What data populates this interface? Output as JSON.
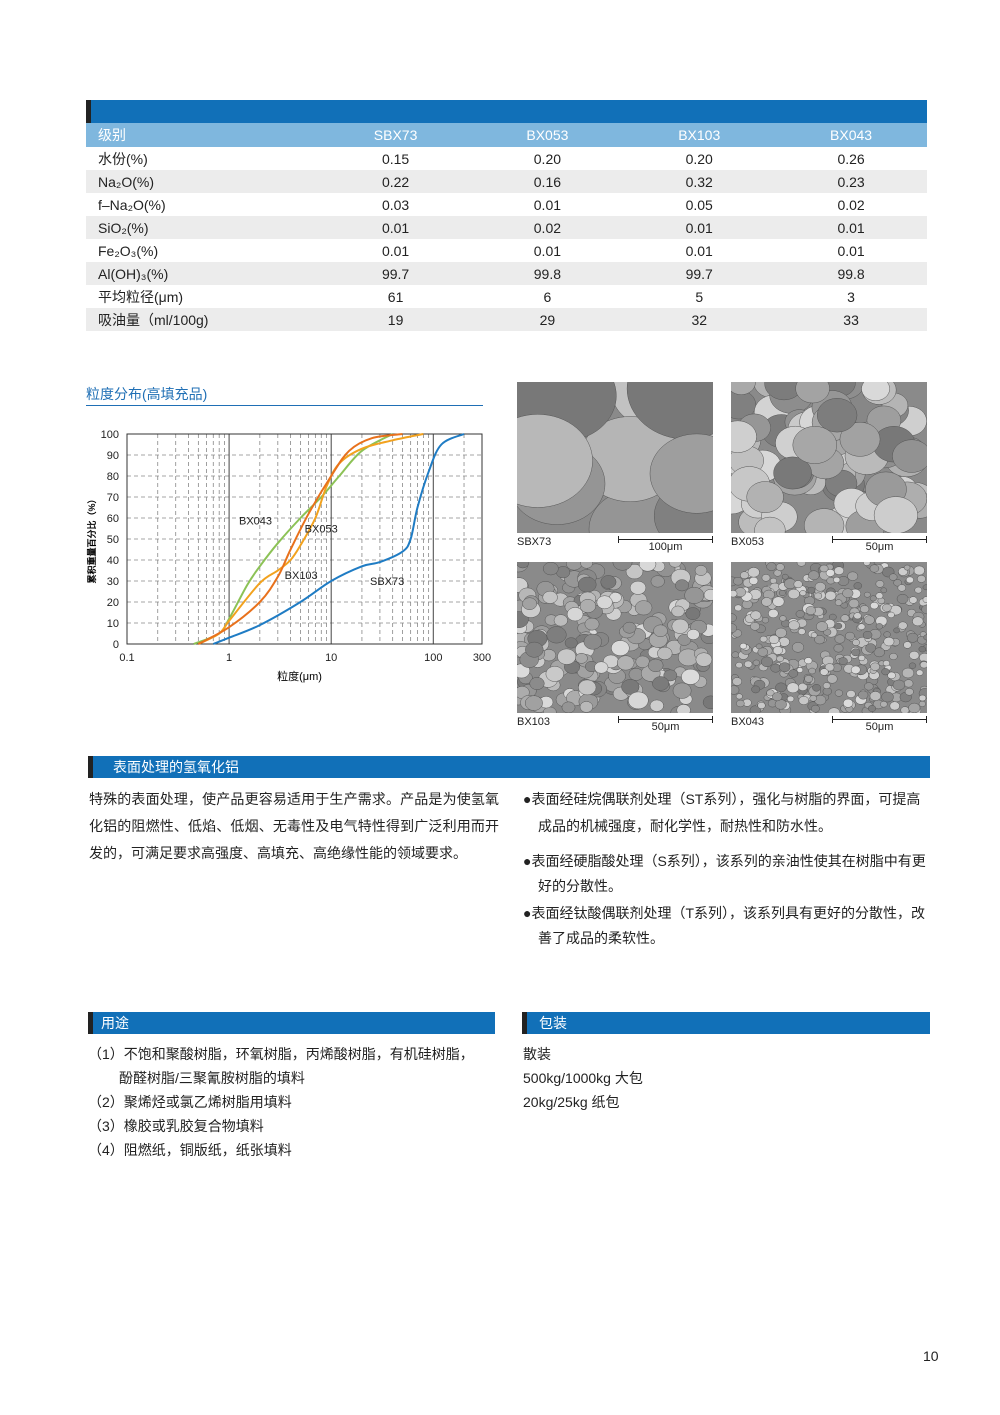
{
  "table": {
    "headers": [
      "级别",
      "SBX73",
      "BX053",
      "BX103",
      "BX043"
    ],
    "rows": [
      {
        "label": "水份(%)",
        "values": [
          "0.15",
          "0.20",
          "0.20",
          "0.26"
        ]
      },
      {
        "label": "Na₂O(%)",
        "values": [
          "0.22",
          "0.16",
          "0.32",
          "0.23"
        ]
      },
      {
        "label": "f–Na₂O(%)",
        "values": [
          "0.03",
          "0.01",
          "0.05",
          "0.02"
        ]
      },
      {
        "label": "SiO₂(%)",
        "values": [
          "0.01",
          "0.02",
          "0.01",
          "0.01"
        ]
      },
      {
        "label": "Fe₂O₃(%)",
        "values": [
          "0.01",
          "0.01",
          "0.01",
          "0.01"
        ]
      },
      {
        "label": "Al(OH)₃(%)",
        "values": [
          "99.7",
          "99.8",
          "99.7",
          "99.8"
        ]
      },
      {
        "label": "平均粒径(μm)",
        "values": [
          "61",
          "6",
          "5",
          "3"
        ]
      },
      {
        "label": "吸油量（ml/100g)",
        "values": [
          "19",
          "29",
          "32",
          "33"
        ]
      }
    ]
  },
  "chart_data": {
    "type": "line",
    "title": "粒度分布(高填充品)",
    "xlabel": "粒度(μm)",
    "ylabel": "累积重量百分比（%）",
    "xscale": "log",
    "xlim": [
      0.1,
      300
    ],
    "ylim": [
      0,
      100
    ],
    "grid": true,
    "xticks": [
      "0.1",
      "1",
      "10",
      "100",
      "300"
    ],
    "yticks": [
      "0",
      "10",
      "20",
      "30",
      "40",
      "50",
      "60",
      "70",
      "80",
      "90",
      "100"
    ],
    "series": [
      {
        "name": "SBX73",
        "color": "#1f7cc4",
        "points": [
          [
            0.7,
            0
          ],
          [
            1,
            3
          ],
          [
            2,
            9
          ],
          [
            5,
            20
          ],
          [
            10,
            30
          ],
          [
            20,
            37
          ],
          [
            30,
            39
          ],
          [
            50,
            44
          ],
          [
            60,
            50
          ],
          [
            70,
            65
          ],
          [
            90,
            82
          ],
          [
            120,
            95
          ],
          [
            200,
            100
          ]
        ]
      },
      {
        "name": "BX043",
        "color": "#8cc256",
        "points": [
          [
            0.45,
            0
          ],
          [
            0.8,
            5
          ],
          [
            1,
            12
          ],
          [
            1.5,
            28
          ],
          [
            2,
            37
          ],
          [
            3,
            48
          ],
          [
            5,
            60
          ],
          [
            8,
            70
          ],
          [
            12,
            80
          ],
          [
            20,
            92
          ],
          [
            40,
            100
          ]
        ]
      },
      {
        "name": "BX053",
        "color": "#f2a21e",
        "points": [
          [
            0.5,
            0
          ],
          [
            0.8,
            5
          ],
          [
            1,
            11
          ],
          [
            2,
            29
          ],
          [
            3,
            35
          ],
          [
            4,
            40
          ],
          [
            5,
            47
          ],
          [
            7,
            60
          ],
          [
            9,
            75
          ],
          [
            12,
            86
          ],
          [
            20,
            93
          ],
          [
            40,
            97
          ],
          [
            80,
            100
          ]
        ]
      },
      {
        "name": "BX103",
        "color": "#e8711c",
        "points": [
          [
            0.5,
            0
          ],
          [
            1,
            8
          ],
          [
            2,
            20
          ],
          [
            3,
            32
          ],
          [
            4,
            45
          ],
          [
            6,
            62
          ],
          [
            10,
            80
          ],
          [
            15,
            92
          ],
          [
            25,
            98
          ],
          [
            50,
            100
          ]
        ]
      }
    ]
  },
  "sem": [
    {
      "label": "SBX73",
      "scale": "100μm"
    },
    {
      "label": "BX053",
      "scale": "50μm"
    },
    {
      "label": "BX103",
      "scale": "50μm"
    },
    {
      "label": "BX043",
      "scale": "50μm"
    }
  ],
  "surface": {
    "title": "表面处理的氢氧化铝",
    "intro": "特殊的表面处理，使产品更容易适用于生产需求。产品是为使氢氧化铝的阻燃性、低焰、低烟、无毒性及电气特性得到广泛利用而开发的，可满足要求高强度、高填充、高绝缘性能的领域要求。",
    "bullets": [
      "●表面经硅烷偶联剂处理（ST系列），强化与树脂的界面，可提高成品的机械强度，耐化学性，耐热性和防水性。",
      "●表面经硬脂酸处理（S系列），该系列的亲油性使其在树脂中有更好的分散性。",
      "●表面经钛酸偶联剂处理（T系列），该系列具有更好的分散性，改善了成品的柔软性。"
    ]
  },
  "uses": {
    "title": "用途",
    "items": [
      "（1）不饱和聚酸树脂，环氧树脂，丙烯酸树脂，有机硅树脂，",
      "酚醛树脂/三聚氰胺树脂的填料",
      "（2）聚烯烃或氯乙烯树脂用填料",
      "（3）橡胶或乳胶复合物填料",
      "（4）阻燃纸，铜版纸，纸张填料"
    ]
  },
  "packaging": {
    "title": "包装",
    "items": [
      "散装",
      "500kg/1000kg 大包",
      "20kg/25kg 纸包"
    ]
  },
  "page_number": "10"
}
